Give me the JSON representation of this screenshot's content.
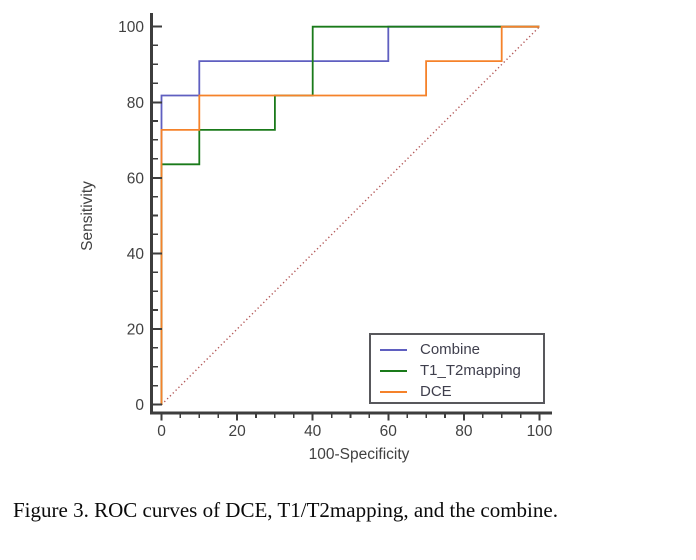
{
  "figure": {
    "caption": "Figure 3. ROC curves of DCE, T1/T2mapping, and the combine."
  },
  "chart_data": {
    "type": "line",
    "subtype": "roc-step-curves",
    "title": "",
    "xlabel": "100-Specificity",
    "ylabel": "Sensitivity",
    "xlim": [
      0,
      100
    ],
    "ylim": [
      0,
      100
    ],
    "x_ticks": [
      0,
      20,
      40,
      60,
      80,
      100
    ],
    "y_ticks": [
      0,
      20,
      40,
      60,
      80,
      100
    ],
    "minor_tick_step": 5,
    "grid": false,
    "legend_position": "inside-bottom-right",
    "series": [
      {
        "name": "Combine",
        "color": "#5f5fc0",
        "points": [
          [
            0,
            0
          ],
          [
            0,
            81.8
          ],
          [
            10,
            81.8
          ],
          [
            10,
            90.9
          ],
          [
            60,
            90.9
          ],
          [
            60,
            100
          ],
          [
            100,
            100
          ]
        ]
      },
      {
        "name": "T1_T2mapping",
        "color": "#1a7a1a",
        "points": [
          [
            0,
            0
          ],
          [
            0,
            63.6
          ],
          [
            10,
            63.6
          ],
          [
            10,
            72.7
          ],
          [
            30,
            72.7
          ],
          [
            30,
            81.8
          ],
          [
            40,
            81.8
          ],
          [
            40,
            100
          ],
          [
            100,
            100
          ]
        ]
      },
      {
        "name": "DCE",
        "color": "#f5822a",
        "points": [
          [
            0,
            0
          ],
          [
            0,
            72.7
          ],
          [
            10,
            72.7
          ],
          [
            10,
            81.8
          ],
          [
            70,
            81.8
          ],
          [
            70,
            90.9
          ],
          [
            90,
            90.9
          ],
          [
            90,
            100
          ],
          [
            100,
            100
          ]
        ]
      }
    ],
    "reference_line": {
      "name": "chance-diagonal",
      "style": "dotted",
      "color": "#b35858",
      "points": [
        [
          0,
          0
        ],
        [
          100,
          100
        ]
      ]
    },
    "axis_color": "#3d3d3d",
    "tick_label_color": "#414141"
  }
}
